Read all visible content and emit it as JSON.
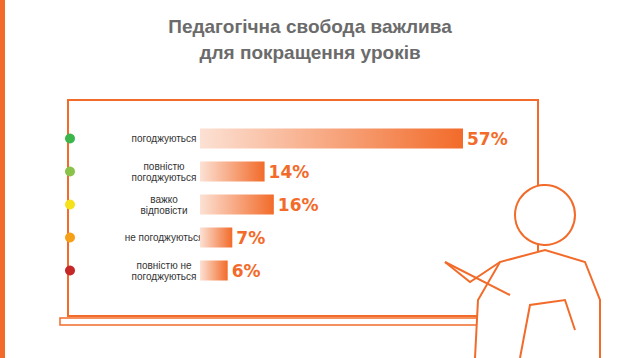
{
  "chart_data": {
    "type": "bar",
    "orientation": "horizontal",
    "title": "Педагогічна свобода важлива\nдля покращення уроків",
    "categories": [
      "погоджуються",
      "повністю\nпогоджуються",
      "важко\nвідповісти",
      "не погоджуються",
      "повністю не\nпогоджуються"
    ],
    "values": [
      57,
      14,
      16,
      7,
      6
    ],
    "value_labels": [
      "57%",
      "14%",
      "16%",
      "7%",
      "6%"
    ],
    "color": "#f26b2a",
    "xlim": [
      0,
      57
    ],
    "data_labels": true,
    "tick_labels": "y",
    "grid": false
  }
}
